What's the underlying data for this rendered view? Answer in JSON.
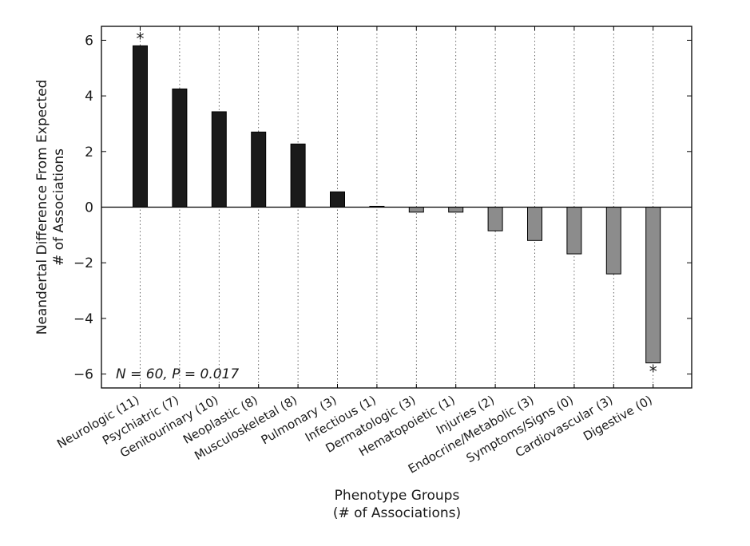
{
  "chart_data": {
    "type": "bar",
    "categories": [
      "Neurologic (11)",
      "Psychiatric (7)",
      "Genitourinary (10)",
      "Neoplastic (8)",
      "Musculoskeletal (8)",
      "Pulmonary (3)",
      "Infectious (1)",
      "Dermatologic (3)",
      "Hematopoietic (1)",
      "Injuries (2)",
      "Endocrine/Metabolic (3)",
      "Symptoms/Signs (0)",
      "Cardiovascular (3)",
      "Digestive (0)"
    ],
    "values": [
      5.8,
      4.25,
      3.43,
      2.7,
      2.27,
      0.55,
      0.03,
      -0.18,
      -0.18,
      -0.85,
      -1.2,
      -1.68,
      -2.4,
      -5.6
    ],
    "xlabel": "Phenotype Groups\n(# of Associations)",
    "ylabel": "Neandertal Difference From Expected\n# of Associations",
    "ylim": [
      -6.5,
      6.5
    ],
    "yticks": [
      -6,
      -4,
      -2,
      0,
      2,
      4,
      6
    ],
    "ytick_labels": [
      "−6",
      "−4",
      "−2",
      "0",
      "2",
      "4",
      "6"
    ],
    "annotation": "N = 60, P = 0.017",
    "significance_marker": "*",
    "significant_indices": [
      0,
      13
    ],
    "grid": "vertical dotted lines at each category",
    "colors": {
      "positive": "#1a1a1a",
      "negative": "#8c8c8c",
      "zero_line": "#000000"
    }
  }
}
